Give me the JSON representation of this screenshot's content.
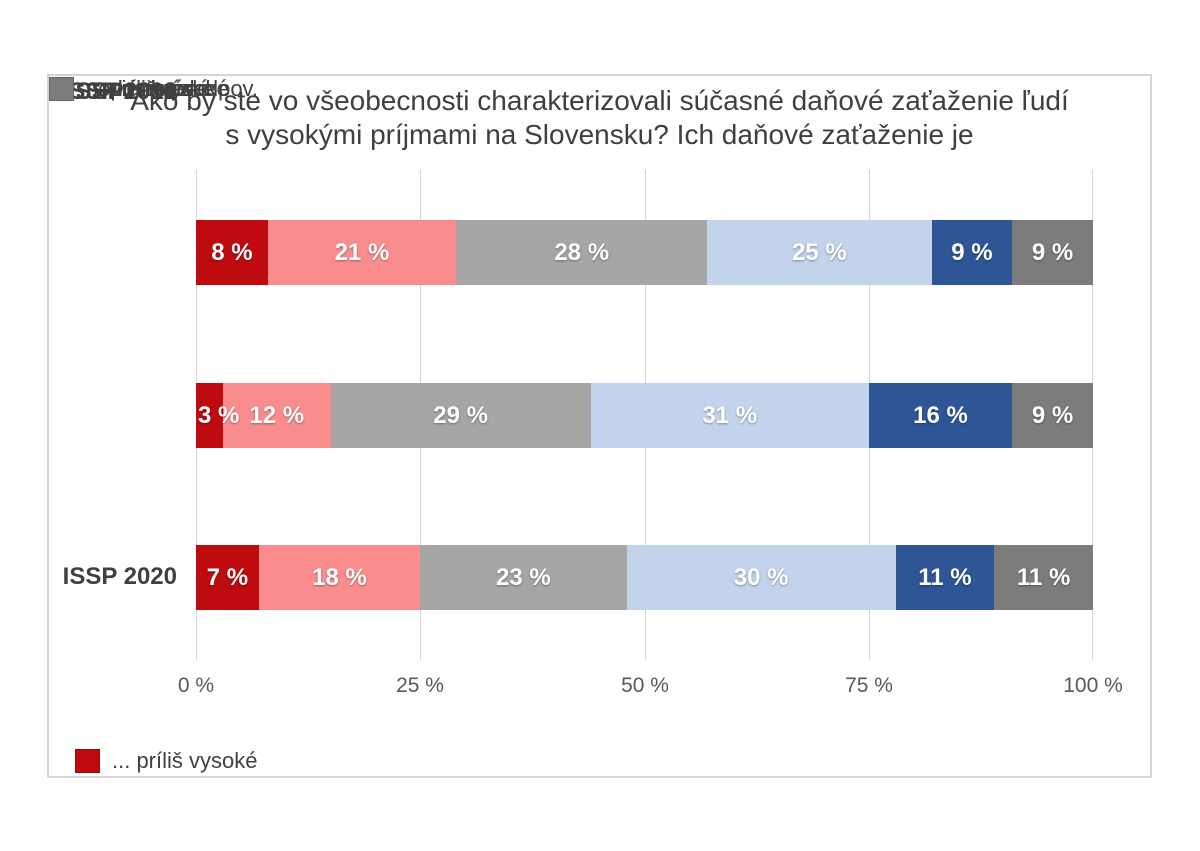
{
  "chart_data": {
    "type": "bar",
    "stacked": true,
    "orientation": "horizontal",
    "title": "Ako by ste vo všeobecnosti charakterizovali súčasné daňové zaťaženie ľudí s vysokými príjmami na Slovensku? Ich daňové zaťaženie je",
    "title_lines": [
      "Ako by ste vo všeobecnosti charakterizovali súčasné daňové zaťaženie ľudí",
      "s vysokými príjmami na Slovensku? Ich daňové zaťaženie je"
    ],
    "categories": [
      "ISSP 2020",
      "ISSP 2010",
      "ISSP1992"
    ],
    "series": [
      {
        "name": "... príliš vysoké",
        "color": "#be0b10",
        "values": [
          8,
          3,
          7
        ]
      },
      {
        "name": "... dosť vysoké",
        "color": "#f98d8e",
        "values": [
          21,
          12,
          18
        ]
      },
      {
        "name": "... primerané",
        "color": "#a6a6a6",
        "values": [
          28,
          29,
          23
        ]
      },
      {
        "name": "... dosť nízke",
        "color": "#c4d3ec",
        "values": [
          25,
          31,
          30
        ]
      },
      {
        "name": "... príliš nízke",
        "color": "#2e5697",
        "values": [
          9,
          16,
          11
        ]
      },
      {
        "name": "neviem, neodpov.",
        "color": "#7c7c7c",
        "values": [
          9,
          9,
          11
        ]
      }
    ],
    "x_ticks": [
      "0 %",
      "25 %",
      "50 %",
      "75 %",
      "100 %"
    ],
    "xlim": [
      0,
      100
    ],
    "value_suffix": " %",
    "grid": true,
    "legend_position": "bottom",
    "value_label_color": "#ffffff"
  }
}
